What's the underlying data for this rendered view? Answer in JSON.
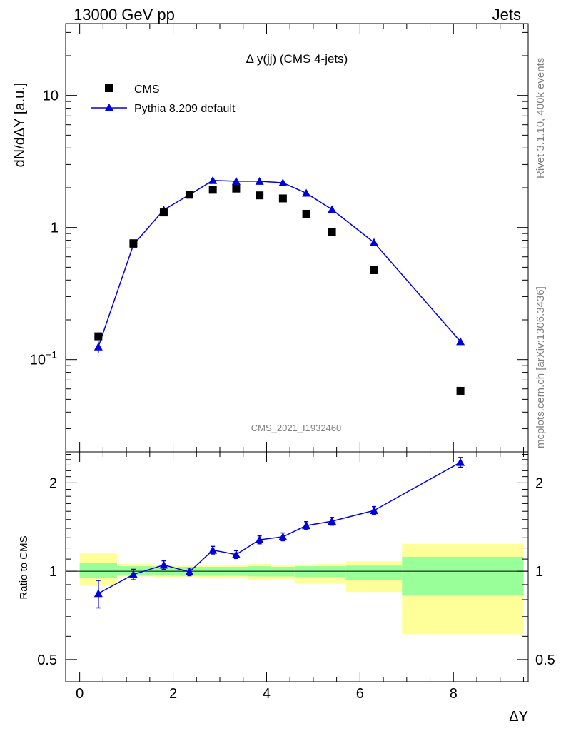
{
  "header": {
    "left": "13000 GeV pp",
    "right": "Jets"
  },
  "side_text": {
    "rivet": "Rivet 3.1.10,  400k events",
    "source": "mcplots.cern.ch [arXiv:1306.3436]"
  },
  "analysis_id": "CMS_2021_I1932460",
  "chart_data": [
    {
      "type": "scatter",
      "title": "Δ y(jj) (CMS 4-jets)",
      "ylabel": "dN/dΔY [a.u.]",
      "xlabel": "ΔY",
      "yscale": "log",
      "ylim": [
        0.02,
        35
      ],
      "xlim": [
        -0.3,
        9.6
      ],
      "yticks": [
        {
          "v": 0.1,
          "base": "10",
          "exp": "−1"
        },
        {
          "v": 1,
          "label": "1"
        },
        {
          "v": 10,
          "label": "10"
        }
      ],
      "legend_position": "top-left",
      "series": [
        {
          "name": "CMS",
          "marker": "square",
          "color": "#000000",
          "x": [
            0.4,
            1.15,
            1.8,
            2.35,
            2.85,
            3.35,
            3.85,
            4.35,
            4.85,
            5.4,
            6.3,
            8.15
          ],
          "y": [
            0.15,
            0.76,
            1.3,
            1.77,
            1.93,
            1.97,
            1.75,
            1.66,
            1.27,
            0.92,
            0.475,
            0.058
          ]
        },
        {
          "name": "Pythia 8.209 default",
          "marker": "triangle",
          "color": "#0000dd",
          "x": [
            0.4,
            1.15,
            1.8,
            2.35,
            2.85,
            3.35,
            3.85,
            4.35,
            4.85,
            5.4,
            6.3,
            8.15
          ],
          "y": [
            0.125,
            0.74,
            1.36,
            1.77,
            2.27,
            2.24,
            2.24,
            2.18,
            1.82,
            1.37,
            0.77,
            0.137
          ],
          "yerr": [
            0.012,
            0.02,
            0.04,
            0.04,
            0.05,
            0.05,
            0.05,
            0.05,
            0.04,
            0.03,
            0.02,
            0.008
          ]
        }
      ]
    },
    {
      "type": "line",
      "ylabel": "Ratio to CMS",
      "xlabel": "ΔY",
      "yscale": "log",
      "ylim": [
        0.42,
        2.55
      ],
      "xlim": [
        -0.3,
        9.6
      ],
      "xticks": [
        0,
        2,
        4,
        6,
        8
      ],
      "yticks": [
        0.5,
        1,
        2
      ],
      "bins": [
        {
          "x0": 0.0,
          "x1": 0.8,
          "g": [
            0.95,
            1.07
          ],
          "y": [
            0.9,
            1.15
          ]
        },
        {
          "x0": 0.8,
          "x1": 1.6,
          "g": [
            0.97,
            1.04
          ],
          "y": [
            0.96,
            1.06
          ]
        },
        {
          "x0": 1.6,
          "x1": 2.1,
          "g": [
            0.97,
            1.03
          ],
          "y": [
            0.955,
            1.05
          ]
        },
        {
          "x0": 2.1,
          "x1": 2.6,
          "g": [
            0.965,
            1.035
          ],
          "y": [
            0.955,
            1.045
          ]
        },
        {
          "x0": 2.6,
          "x1": 3.1,
          "g": [
            0.965,
            1.035
          ],
          "y": [
            0.945,
            1.045
          ]
        },
        {
          "x0": 3.1,
          "x1": 3.6,
          "g": [
            0.965,
            1.035
          ],
          "y": [
            0.945,
            1.05
          ]
        },
        {
          "x0": 3.6,
          "x1": 4.1,
          "g": [
            0.96,
            1.04
          ],
          "y": [
            0.935,
            1.06
          ]
        },
        {
          "x0": 4.1,
          "x1": 4.6,
          "g": [
            0.96,
            1.035
          ],
          "y": [
            0.94,
            1.05
          ]
        },
        {
          "x0": 4.6,
          "x1": 5.1,
          "g": [
            0.955,
            1.04
          ],
          "y": [
            0.91,
            1.055
          ]
        },
        {
          "x0": 5.1,
          "x1": 5.7,
          "g": [
            0.955,
            1.04
          ],
          "y": [
            0.91,
            1.06
          ]
        },
        {
          "x0": 5.7,
          "x1": 6.9,
          "g": [
            0.93,
            1.045
          ],
          "y": [
            0.85,
            1.08
          ]
        },
        {
          "x0": 6.9,
          "x1": 9.5,
          "g": [
            0.83,
            1.12
          ],
          "y": [
            0.61,
            1.24
          ]
        }
      ],
      "series": [
        {
          "name": "Pythia 8.209 default",
          "color": "#0000dd",
          "x": [
            0.4,
            1.15,
            1.8,
            2.35,
            2.85,
            3.35,
            3.85,
            4.35,
            4.85,
            5.4,
            6.3,
            8.15
          ],
          "y": [
            0.84,
            0.975,
            1.05,
            0.995,
            1.18,
            1.14,
            1.28,
            1.31,
            1.43,
            1.48,
            1.61,
            2.35
          ],
          "yerr": [
            0.09,
            0.04,
            0.035,
            0.03,
            0.035,
            0.035,
            0.04,
            0.04,
            0.045,
            0.045,
            0.05,
            0.09
          ]
        }
      ]
    }
  ]
}
